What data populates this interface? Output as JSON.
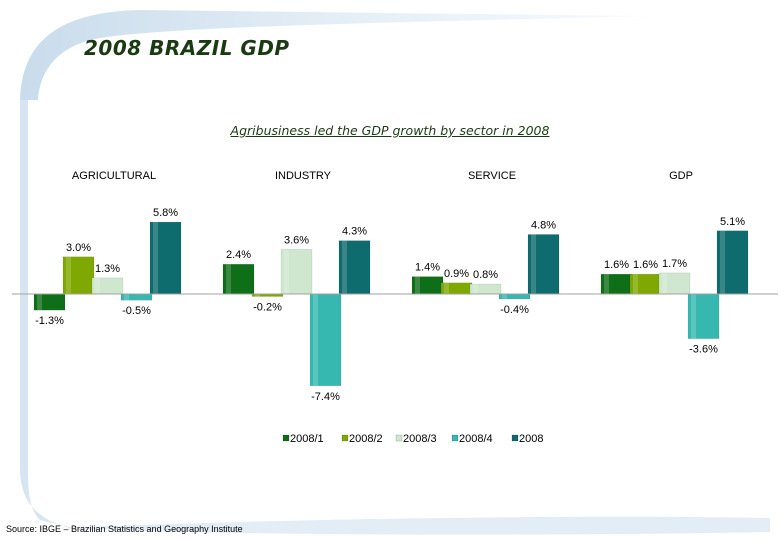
{
  "page": {
    "title": "2008 BRAZIL GDP",
    "source": "Source: IBGE – Brazilian Statistics and Geography Institute"
  },
  "chart_data": {
    "type": "bar",
    "title": "Agribusiness led the GDP growth by sector in 2008",
    "categories": [
      "AGRICULTURAL",
      "INDUSTRY",
      "SERVICE",
      "GDP"
    ],
    "series": [
      {
        "name": "2008/1",
        "values": [
          -1.3,
          2.4,
          1.4,
          1.6
        ],
        "labels": [
          "-1.3%",
          "2.4%",
          "1.4%",
          "1.6%"
        ],
        "color": "#0f6e18"
      },
      {
        "name": "2008/2",
        "values": [
          3.0,
          -0.2,
          0.9,
          1.6
        ],
        "labels": [
          "3.0%",
          "-0.2%",
          "0.9%",
          "1.6%"
        ],
        "color": "#7fa800"
      },
      {
        "name": "2008/3",
        "values": [
          1.3,
          3.6,
          0.8,
          1.7
        ],
        "labels": [
          "1.3%",
          "3.6%",
          "0.8%",
          "1.7%"
        ],
        "color": "#cfe7cf"
      },
      {
        "name": "2008/4",
        "values": [
          -0.5,
          -7.4,
          -0.4,
          -3.6
        ],
        "labels": [
          "-0.5%",
          "-7.4%",
          "-0.4%",
          "-3.6%"
        ],
        "color": "#36b8b0"
      },
      {
        "name": "2008",
        "values": [
          5.8,
          4.3,
          4.8,
          5.1
        ],
        "labels": [
          "5.8%",
          "4.3%",
          "4.8%",
          "5.1%"
        ],
        "color": "#0e6b6e"
      }
    ],
    "legend_position": "bottom",
    "grid": false
  }
}
